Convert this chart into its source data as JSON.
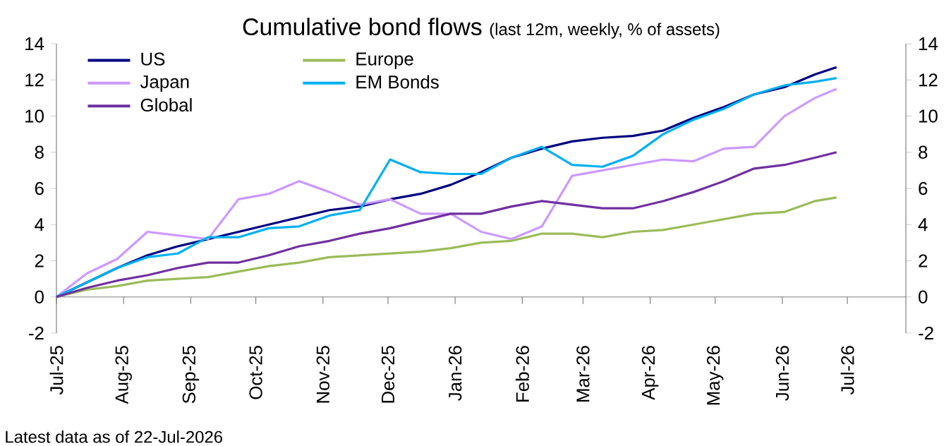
{
  "chart_data": {
    "type": "line",
    "title": "Cumulative bond flows",
    "subtitle": "(last 12m, weekly, % of assets)",
    "x": [
      "2025-07-01",
      "2025-07-15",
      "2025-07-29",
      "2025-08-12",
      "2025-08-26",
      "2025-09-09",
      "2025-09-23",
      "2025-10-07",
      "2025-10-21",
      "2025-11-04",
      "2025-11-18",
      "2025-12-02",
      "2025-12-16",
      "2025-12-30",
      "2026-01-13",
      "2026-01-27",
      "2026-02-10",
      "2026-02-24",
      "2026-03-10",
      "2026-03-24",
      "2026-04-07",
      "2026-04-21",
      "2026-05-05",
      "2026-05-19",
      "2026-06-02",
      "2026-06-16",
      "2026-06-26"
    ],
    "series": [
      {
        "name": "US",
        "color": "#000080",
        "values": [
          0,
          0.8,
          1.6,
          2.3,
          2.8,
          3.2,
          3.6,
          4.0,
          4.4,
          4.8,
          5.0,
          5.4,
          5.7,
          6.2,
          6.9,
          7.7,
          8.2,
          8.6,
          8.8,
          8.9,
          9.2,
          9.9,
          10.5,
          11.2,
          11.6,
          12.3,
          12.7
        ]
      },
      {
        "name": "Europe",
        "color": "#9bbb59",
        "values": [
          0,
          0.4,
          0.6,
          0.9,
          1.0,
          1.1,
          1.4,
          1.7,
          1.9,
          2.2,
          2.3,
          2.4,
          2.5,
          2.7,
          3.0,
          3.1,
          3.5,
          3.5,
          3.3,
          3.6,
          3.7,
          4.0,
          4.3,
          4.6,
          4.7,
          5.3,
          5.5
        ]
      },
      {
        "name": "Japan",
        "color": "#cc99ff",
        "values": [
          0,
          1.3,
          2.1,
          3.6,
          3.4,
          3.2,
          5.4,
          5.7,
          6.4,
          5.8,
          5.1,
          5.4,
          4.6,
          4.6,
          3.6,
          3.2,
          3.9,
          6.7,
          7.0,
          7.3,
          7.6,
          7.5,
          8.2,
          8.3,
          10.0,
          11.0,
          11.5
        ]
      },
      {
        "name": "EM Bonds",
        "color": "#00b0f0",
        "values": [
          0,
          0.8,
          1.6,
          2.2,
          2.4,
          3.3,
          3.3,
          3.8,
          3.9,
          4.5,
          4.8,
          7.6,
          6.9,
          6.8,
          6.8,
          7.7,
          8.3,
          7.3,
          7.2,
          7.8,
          9.0,
          9.8,
          10.4,
          11.2,
          11.7,
          11.9,
          12.1
        ]
      },
      {
        "name": "Global",
        "color": "#7030a0",
        "values": [
          0,
          0.5,
          0.9,
          1.2,
          1.6,
          1.9,
          1.9,
          2.3,
          2.8,
          3.1,
          3.5,
          3.8,
          4.2,
          4.6,
          4.6,
          5.0,
          5.3,
          5.1,
          4.9,
          4.9,
          5.3,
          5.8,
          6.4,
          7.1,
          7.3,
          7.7,
          8.0
        ]
      }
    ],
    "xlim": [
      "2025-07-01",
      "2026-07-28"
    ],
    "xticks": [
      {
        "value": "2025-07-01",
        "label": "Jul-25"
      },
      {
        "value": "2025-08-01",
        "label": "Aug-25"
      },
      {
        "value": "2025-09-01",
        "label": "Sep-25"
      },
      {
        "value": "2025-10-01",
        "label": "Oct-25"
      },
      {
        "value": "2025-11-01",
        "label": "Nov-25"
      },
      {
        "value": "2025-12-01",
        "label": "Dec-25"
      },
      {
        "value": "2026-01-01",
        "label": "Jan-26"
      },
      {
        "value": "2026-02-01",
        "label": "Feb-26"
      },
      {
        "value": "2026-03-01",
        "label": "Mar-26"
      },
      {
        "value": "2026-04-01",
        "label": "Apr-26"
      },
      {
        "value": "2026-05-01",
        "label": "May-26"
      },
      {
        "value": "2026-06-01",
        "label": "Jun-26"
      },
      {
        "value": "2026-07-01",
        "label": "Jul-26"
      }
    ],
    "ylim": [
      -2,
      14
    ],
    "yticks": [
      -2,
      0,
      2,
      4,
      6,
      8,
      10,
      12,
      14
    ],
    "y2lim": [
      -2,
      14
    ],
    "y2ticks": [
      -2,
      0,
      2,
      4,
      6,
      8,
      10,
      12,
      14
    ],
    "legend": "top left",
    "annotations": [
      "Latest data as of 22-Jul-2026"
    ]
  }
}
